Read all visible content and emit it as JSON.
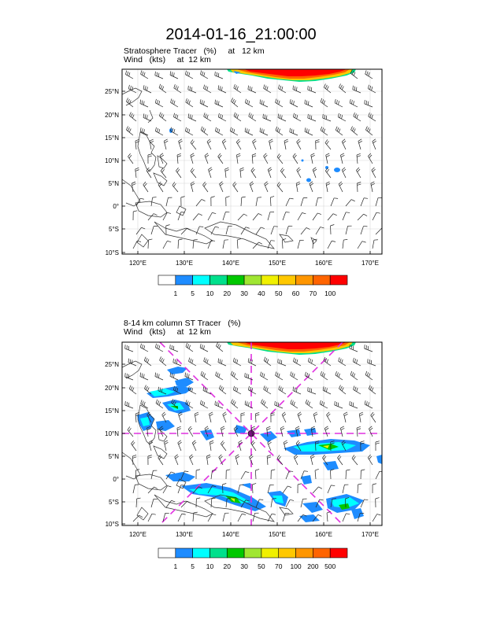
{
  "title": "2014-01-16_21:00:00",
  "panels": [
    {
      "id": "top",
      "title_line1": "Stratosphere Tracer   (%)     at   12 km",
      "title_line2": "Wind   (kts)     at  12 km",
      "lat_ticks": [
        "25°N",
        "20°N",
        "15°N",
        "10°N",
        "5°N",
        "0°",
        "5°S",
        "10°S"
      ],
      "lon_ticks": [
        "120°E",
        "130°E",
        "140°E",
        "150°E",
        "160°E",
        "170°E"
      ],
      "colorbar_labels": [
        "1",
        "5",
        "10",
        "20",
        "30",
        "40",
        "50",
        "60",
        "70",
        "100"
      ],
      "colorbar_colors": [
        "#ffffff",
        "#1e8cff",
        "#00ffff",
        "#00e08c",
        "#00c800",
        "#a0e632",
        "#f0f000",
        "#ffc800",
        "#ff9600",
        "#ff6400",
        "#ff0000"
      ],
      "guide_lines": false
    },
    {
      "id": "bottom",
      "title_line1": "8-14 km column ST Tracer   (%)",
      "title_line2": "Wind   (kts)     at  12 km",
      "lat_ticks": [
        "25°N",
        "20°N",
        "15°N",
        "10°N",
        "5°N",
        "0°",
        "5°S",
        "10°S"
      ],
      "lon_ticks": [
        "120°E",
        "130°E",
        "140°E",
        "150°E",
        "160°E",
        "170°E"
      ],
      "colorbar_labels": [
        "1",
        "5",
        "10",
        "20",
        "30",
        "50",
        "70",
        "100",
        "200",
        "500"
      ],
      "colorbar_colors": [
        "#ffffff",
        "#1e8cff",
        "#00ffff",
        "#00e08c",
        "#00c800",
        "#a0e632",
        "#f0f000",
        "#ffc800",
        "#ff9600",
        "#ff6400",
        "#ff0000"
      ],
      "guide_lines": true,
      "guide_color": "#e030e0"
    }
  ]
}
